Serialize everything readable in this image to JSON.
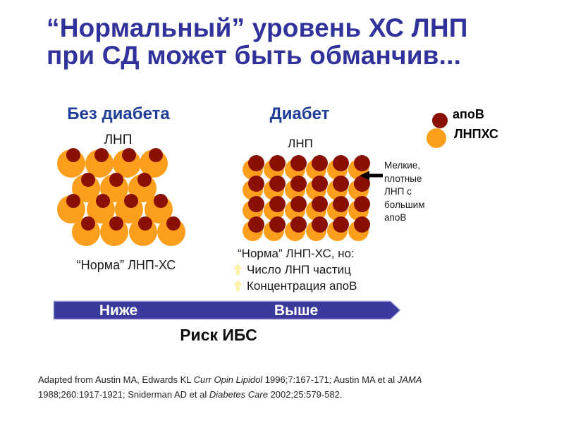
{
  "slide": {
    "title_line1": "“Нормальный” уровень ХС ЛНП",
    "title_line2": "при СД может быть обманчив..."
  },
  "legend": {
    "items": [
      {
        "label": "апоВ",
        "color": "#8A1004"
      },
      {
        "label": "ЛНПХС",
        "color": "#FD9F1C"
      }
    ]
  },
  "comparison": {
    "left": {
      "heading": "Без диабета",
      "particle_label": "ЛНП",
      "caption": "“Норма” ЛНП-ХС",
      "particle_count": 15,
      "particle_size": "large"
    },
    "right": {
      "heading": "Диабет",
      "particle_label": "ЛНП",
      "caption": "“Норма” ЛНП-ХС, но:",
      "bullets": [
        "Число ЛНП частиц",
        "Концентрация апоВ"
      ],
      "particle_count": 24,
      "particle_size": "small-dense"
    }
  },
  "annotation": {
    "text": "Мелкие,\nплотные\nЛНП с\nбольшим\nапоВ"
  },
  "risk_axis": {
    "low_label": "Ниже",
    "high_label": "Выше",
    "caption": "Риск ИБС"
  },
  "citation": {
    "segments": [
      {
        "text": "Adapted from Austin MA, Edwards KL ",
        "italic": false
      },
      {
        "text": "Curr Opin Lipidol",
        "italic": true
      },
      {
        "text": " 1996;7:167-171; Austin MA et al ",
        "italic": false
      },
      {
        "text": "JAMA",
        "italic": true
      },
      {
        "text": " 1988;260:1917-1921; Sniderman AD et al ",
        "italic": false
      },
      {
        "text": "Diabetes Care",
        "italic": true
      },
      {
        "text": " 2002;25:579-582.",
        "italic": false
      }
    ]
  },
  "colors": {
    "title_blue": "#31329B",
    "heading_blue": "#1E3D96",
    "bar_blue": "#3A3A9C",
    "bar_border": "#C7C7E6",
    "apob_red": "#8A1004",
    "ldl_orange": "#FD9F1C",
    "bullet_arrow_yellow": "#FFF2A6"
  }
}
